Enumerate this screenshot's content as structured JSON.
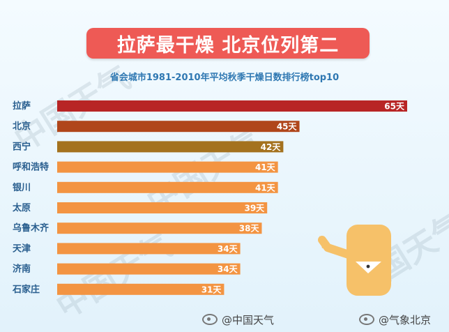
{
  "title": "拉萨最干燥  北京位列第二",
  "chart_data": {
    "type": "bar",
    "orientation": "horizontal",
    "title": "省会城市1981-2010年平均秋季干燥日数排行榜top10",
    "categories": [
      "拉萨",
      "北京",
      "西宁",
      "呼和浩特",
      "银川",
      "太原",
      "乌鲁木齐",
      "天津",
      "济南",
      "石家庄"
    ],
    "values": [
      65,
      45,
      42,
      41,
      41,
      39,
      38,
      34,
      34,
      31
    ],
    "value_labels": [
      "65天",
      "45天",
      "42天",
      "41天",
      "41天",
      "39天",
      "38天",
      "34天",
      "34天",
      "31天"
    ],
    "unit": "天",
    "colors": [
      "#b82525",
      "#b0461b",
      "#a4721e",
      "#f39442",
      "#f39442",
      "#f39442",
      "#f39442",
      "#f39442",
      "#f39442",
      "#f39442"
    ],
    "xlim": [
      0,
      65
    ],
    "grid": false,
    "legend": "none"
  },
  "watermark": "中国天气",
  "footer": {
    "left": "@中国天气",
    "right": "@气象北京"
  }
}
